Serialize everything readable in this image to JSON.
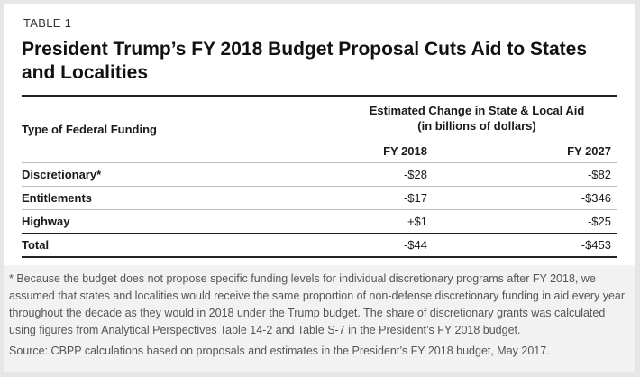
{
  "header": {
    "label": "TABLE 1",
    "title": "President Trump’s FY 2018 Budget Proposal Cuts Aid to States and Localities"
  },
  "table": {
    "row_header": "Type of Federal Funding",
    "group_header_line1": "Estimated Change in State & Local Aid",
    "group_header_line2": "(in billions of dollars)",
    "columns": [
      "FY 2018",
      "FY 2027"
    ],
    "rows": [
      {
        "label": "Discretionary*",
        "fy2018": "-$28",
        "fy2027": "-$82"
      },
      {
        "label": "Entitlements",
        "fy2018": "-$17",
        "fy2027": "-$346"
      },
      {
        "label": "Highway",
        "fy2018": "+$1",
        "fy2027": "-$25"
      },
      {
        "label": "Total",
        "fy2018": "-$44",
        "fy2027": "-$453"
      }
    ]
  },
  "footer": {
    "note": "* Because the budget does not propose specific funding levels for individual discretionary programs after FY 2018, we assumed that states and localities would receive the same proportion of non-defense discretionary funding in aid every year throughout the decade as they would in 2018 under the Trump budget.  The share of discretionary grants was calculated using figures from Analytical Perspectives Table 14-2 and Table S-7 in the President’s FY 2018 budget.",
    "source": "Source: CBPP calculations based on proposals and estimates in the President’s FY 2018 budget, May 2017."
  }
}
